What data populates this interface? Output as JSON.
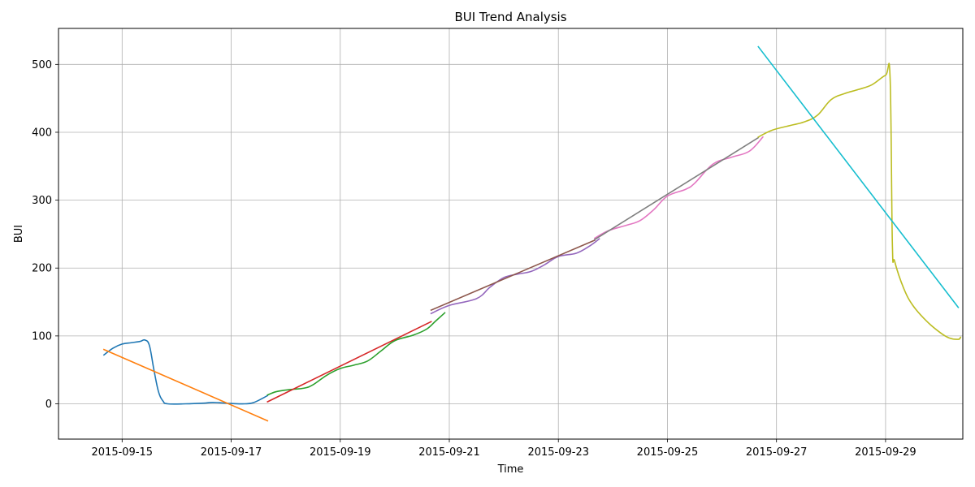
{
  "chart_data": {
    "type": "line",
    "title": "BUI Trend Analysis",
    "xlabel": "Time",
    "ylabel": "BUI",
    "x_ticks": [
      "2015-09-15",
      "2015-09-17",
      "2015-09-19",
      "2015-09-21",
      "2015-09-23",
      "2015-09-25",
      "2015-09-27",
      "2015-09-29"
    ],
    "y_ticks": [
      0,
      100,
      200,
      300,
      400,
      500
    ],
    "xlim": [
      "2015-09-13 20:00",
      "2015-09-30 10:00"
    ],
    "ylim": [
      -52,
      553
    ],
    "grid": true,
    "series": [
      {
        "color": "#1f77b4",
        "points": [
          [
            "2015-09-14 16:00",
            72
          ],
          [
            "2015-09-14 20:00",
            82
          ],
          [
            "2015-09-15 00:00",
            88
          ],
          [
            "2015-09-15 04:00",
            90
          ],
          [
            "2015-09-15 08:00",
            92
          ],
          [
            "2015-09-15 10:00",
            94
          ],
          [
            "2015-09-15 12:00",
            86
          ],
          [
            "2015-09-15 14:00",
            50
          ],
          [
            "2015-09-15 16:00",
            18
          ],
          [
            "2015-09-15 18:00",
            4
          ],
          [
            "2015-09-15 20:00",
            0
          ],
          [
            "2015-09-16 04:00",
            0
          ],
          [
            "2015-09-16 12:00",
            1
          ],
          [
            "2015-09-16 16:00",
            2
          ],
          [
            "2015-09-17 00:00",
            0.5
          ],
          [
            "2015-09-17 06:00",
            0
          ],
          [
            "2015-09-17 10:00",
            2
          ],
          [
            "2015-09-17 16:00",
            12
          ]
        ]
      },
      {
        "color": "#ff7f0e",
        "points": [
          [
            "2015-09-14 16:00",
            80
          ],
          [
            "2015-09-17 16:00",
            -25
          ]
        ]
      },
      {
        "color": "#2ca02c",
        "points": [
          [
            "2015-09-17 16:00",
            13
          ],
          [
            "2015-09-17 20:00",
            18
          ],
          [
            "2015-09-18 02:00",
            21
          ],
          [
            "2015-09-18 08:00",
            23
          ],
          [
            "2015-09-18 12:00",
            28
          ],
          [
            "2015-09-18 18:00",
            42
          ],
          [
            "2015-09-19 00:00",
            52
          ],
          [
            "2015-09-19 06:00",
            57
          ],
          [
            "2015-09-19 12:00",
            63
          ],
          [
            "2015-09-19 18:00",
            78
          ],
          [
            "2015-09-20 00:00",
            93
          ],
          [
            "2015-09-20 08:00",
            101
          ],
          [
            "2015-09-20 14:00",
            110
          ],
          [
            "2015-09-20 18:00",
            122
          ],
          [
            "2015-09-20 22:00",
            134
          ]
        ]
      },
      {
        "color": "#d62728",
        "points": [
          [
            "2015-09-17 16:00",
            3
          ],
          [
            "2015-09-20 16:00",
            121
          ]
        ]
      },
      {
        "color": "#9467bd",
        "points": [
          [
            "2015-09-20 16:00",
            133
          ],
          [
            "2015-09-21 00:00",
            145
          ],
          [
            "2015-09-21 12:00",
            155
          ],
          [
            "2015-09-21 18:00",
            172
          ],
          [
            "2015-09-22 00:00",
            186
          ],
          [
            "2015-09-22 06:00",
            191
          ],
          [
            "2015-09-22 12:00",
            195
          ],
          [
            "2015-09-22 18:00",
            205
          ],
          [
            "2015-09-23 00:00",
            217
          ],
          [
            "2015-09-23 08:00",
            222
          ],
          [
            "2015-09-23 14:00",
            233
          ],
          [
            "2015-09-23 18:00",
            243
          ]
        ]
      },
      {
        "color": "#8c564b",
        "points": [
          [
            "2015-09-20 16:00",
            138
          ],
          [
            "2015-09-23 16:00",
            241
          ]
        ]
      },
      {
        "color": "#e377c2",
        "points": [
          [
            "2015-09-23 16:00",
            244
          ],
          [
            "2015-09-23 22:00",
            255
          ],
          [
            "2015-09-24 06:00",
            263
          ],
          [
            "2015-09-24 12:00",
            270
          ],
          [
            "2015-09-24 18:00",
            286
          ],
          [
            "2015-09-25 00:00",
            306
          ],
          [
            "2015-09-25 08:00",
            316
          ],
          [
            "2015-09-25 12:00",
            325
          ],
          [
            "2015-09-25 20:00",
            353
          ],
          [
            "2015-09-26 04:00",
            363
          ],
          [
            "2015-09-26 12:00",
            372
          ],
          [
            "2015-09-26 18:00",
            393
          ]
        ]
      },
      {
        "color": "#7f7f7f",
        "points": [
          [
            "2015-09-23 16:00",
            242
          ],
          [
            "2015-09-26 16:00",
            392
          ]
        ]
      },
      {
        "color": "#bcbd22",
        "points": [
          [
            "2015-09-26 16:00",
            393
          ],
          [
            "2015-09-26 22:00",
            403
          ],
          [
            "2015-09-27 06:00",
            410
          ],
          [
            "2015-09-27 12:00",
            415
          ],
          [
            "2015-09-27 18:00",
            425
          ],
          [
            "2015-09-28 00:00",
            448
          ],
          [
            "2015-09-28 06:00",
            457
          ],
          [
            "2015-09-28 12:00",
            463
          ],
          [
            "2015-09-28 18:00",
            470
          ],
          [
            "2015-09-29 00:00",
            484
          ],
          [
            "2015-09-29 02:00",
            480
          ],
          [
            "2015-09-29 03:00",
            235
          ],
          [
            "2015-09-29 04:00",
            210
          ],
          [
            "2015-09-29 08:00",
            170
          ],
          [
            "2015-09-29 12:00",
            145
          ],
          [
            "2015-09-29 18:00",
            122
          ],
          [
            "2015-09-30 00:00",
            105
          ],
          [
            "2015-09-30 04:00",
            97
          ],
          [
            "2015-09-30 08:00",
            95
          ],
          [
            "2015-09-30 09:00",
            98
          ]
        ]
      },
      {
        "color": "#17becf",
        "points": [
          [
            "2015-09-26 16:00",
            526
          ],
          [
            "2015-09-30 08:00",
            142
          ]
        ]
      }
    ]
  }
}
